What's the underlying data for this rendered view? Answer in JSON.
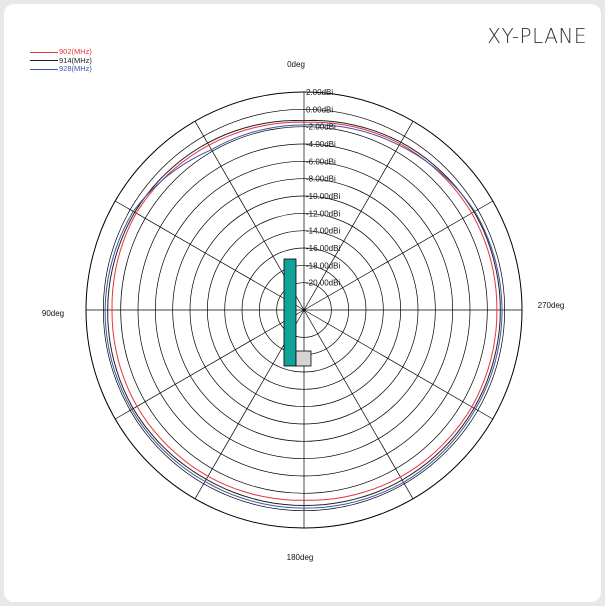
{
  "title": "XY-PLANE",
  "chart_data": {
    "type": "polar-line",
    "title": "XY-PLANE",
    "angle_labels": {
      "top": "0deg",
      "right": "270deg",
      "bottom": "180deg",
      "left": "90deg"
    },
    "radial_ticks": [
      "2.00dBi",
      "0.00dBi",
      "-2.00dBi",
      "-4.00dBi",
      "-6.00dBi",
      "-8.00dBi",
      "-10.00dBi",
      "-12.00dBi",
      "-14.00dBi",
      "-16.00dBi",
      "-18.00dBi",
      "-20.00dBi"
    ],
    "radial_range": [
      -22,
      2
    ],
    "angle_step_deg": 30,
    "grid": true,
    "legend_position": "top-left",
    "angles_deg": [
      0,
      30,
      60,
      90,
      120,
      150,
      180,
      210,
      240,
      270,
      300,
      330
    ],
    "series": [
      {
        "name": "902(MHz)",
        "color": "#e8333a",
        "values": [
          -1.5,
          -1.2,
          -0.8,
          -1.0,
          -0.9,
          -1.0,
          -1.2,
          -0.9,
          -0.8,
          -0.9,
          -0.8,
          -1.0
        ]
      },
      {
        "name": "914(MHz)",
        "color": "#222222",
        "values": [
          -1.3,
          -0.9,
          -0.6,
          -0.5,
          -0.4,
          -0.6,
          -0.6,
          -0.5,
          -0.5,
          -0.5,
          -0.5,
          -0.8
        ]
      },
      {
        "name": "928(MHz)",
        "color": "#3b56a6",
        "values": [
          -1.8,
          -1.8,
          -0.4,
          -0.2,
          -0.2,
          -0.3,
          -0.3,
          -0.2,
          -0.3,
          -0.3,
          -0.4,
          -1.2
        ]
      }
    ],
    "indicator_color": "#11a39a"
  }
}
